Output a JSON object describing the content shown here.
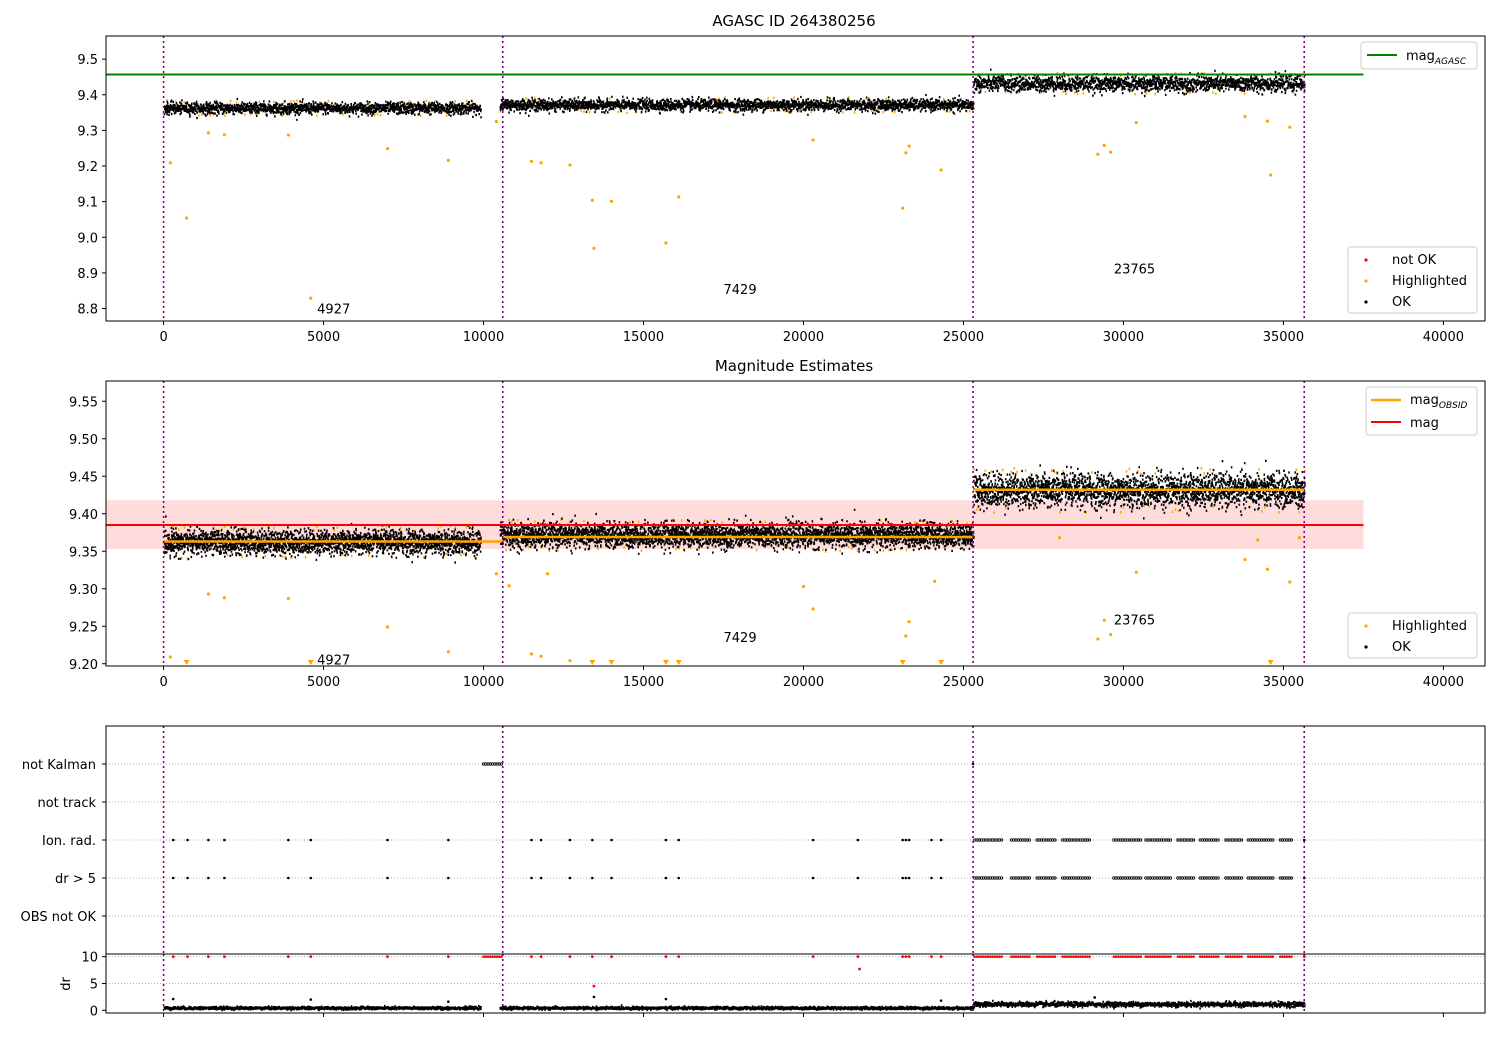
{
  "colors": {
    "ok": "#000000",
    "highlighted": "#ffa500",
    "not_ok": "#ff0000",
    "mag_agasc": "#008000",
    "mag_obsid": "#ffa500",
    "mag": "#ff0000",
    "band": "#ffdcdc",
    "obs_divider": "#800080"
  },
  "chart_data": [
    {
      "id": "agasc",
      "type": "scatter",
      "title": "AGASC ID 264380256",
      "xlim": [
        -1800,
        41300
      ],
      "ylim": [
        8.765,
        9.565
      ],
      "x_ticks": [
        0,
        5000,
        10000,
        15000,
        20000,
        25000,
        30000,
        35000,
        40000
      ],
      "y_ticks": [
        8.8,
        8.9,
        9.0,
        9.1,
        9.2,
        9.3,
        9.4,
        9.5
      ],
      "y_tick_labels": [
        "8.8",
        "8.9",
        "9.0",
        "9.1",
        "9.2",
        "9.3",
        "9.4",
        "9.5"
      ],
      "obs_boundaries": [
        0,
        10600,
        25300,
        35650
      ],
      "obsid_labels": [
        {
          "text": "4927",
          "x": 4800,
          "y": 8.8
        },
        {
          "text": "7429",
          "x": 17500,
          "y": 8.855
        },
        {
          "text": "23765",
          "x": 29700,
          "y": 8.912
        }
      ],
      "ok_bands": [
        {
          "x0": 0,
          "x1": 9900,
          "center": 9.362,
          "spread": 0.016
        },
        {
          "x0": 10500,
          "x1": 25300,
          "center": 9.371,
          "spread": 0.016
        },
        {
          "x0": 25300,
          "x1": 35650,
          "center": 9.431,
          "spread": 0.022
        }
      ],
      "hlines": [
        {
          "name": "mag_AGASC",
          "y": 9.457,
          "x0": -1800,
          "x1": 37500,
          "color": "#008000"
        }
      ],
      "highlighted_points": [
        [
          210,
          9.209
        ],
        [
          720,
          9.054
        ],
        [
          1400,
          9.293
        ],
        [
          1900,
          9.288
        ],
        [
          3900,
          9.287
        ],
        [
          4600,
          8.829
        ],
        [
          7000,
          9.249
        ],
        [
          8900,
          9.216
        ],
        [
          10400,
          9.325
        ],
        [
          11500,
          9.213
        ],
        [
          11800,
          9.209
        ],
        [
          12700,
          9.203
        ],
        [
          13400,
          9.104
        ],
        [
          13450,
          8.969
        ],
        [
          14000,
          9.101
        ],
        [
          15700,
          8.984
        ],
        [
          16100,
          9.113
        ],
        [
          20300,
          9.273
        ],
        [
          23100,
          9.082
        ],
        [
          23200,
          9.237
        ],
        [
          23300,
          9.256
        ],
        [
          24300,
          9.189
        ],
        [
          29200,
          9.233
        ],
        [
          29400,
          9.258
        ],
        [
          29600,
          9.239
        ],
        [
          30400,
          9.322
        ],
        [
          33800,
          9.339
        ],
        [
          34500,
          9.326
        ],
        [
          34600,
          9.175
        ],
        [
          35200,
          9.309
        ]
      ],
      "legend": {
        "placement": "lower-right",
        "entries": [
          {
            "label": "not OK",
            "color": "#ff0000"
          },
          {
            "label": "Highlighted",
            "color": "#ffa500"
          },
          {
            "label": "OK",
            "color": "#000000"
          }
        ]
      },
      "legend_lines": {
        "placement": "upper-right",
        "entries": [
          {
            "label": "mag",
            "subscript": "AGASC",
            "color": "#008000"
          }
        ]
      }
    },
    {
      "id": "estimates",
      "type": "scatter",
      "title": "Magnitude Estimates",
      "xlim": [
        -1800,
        41300
      ],
      "ylim": [
        9.197,
        9.577
      ],
      "x_ticks": [
        0,
        5000,
        10000,
        15000,
        20000,
        25000,
        30000,
        35000,
        40000
      ],
      "y_ticks": [
        9.2,
        9.25,
        9.3,
        9.35,
        9.4,
        9.45,
        9.5,
        9.55
      ],
      "y_tick_labels": [
        "9.20",
        "9.25",
        "9.30",
        "9.35",
        "9.40",
        "9.45",
        "9.50",
        "9.55"
      ],
      "obs_boundaries": [
        0,
        10600,
        25300,
        35650
      ],
      "obsid_labels": [
        {
          "text": "4927",
          "x": 4800,
          "y": 9.206
        },
        {
          "text": "7429",
          "x": 17500,
          "y": 9.236
        },
        {
          "text": "23765",
          "x": 29700,
          "y": 9.259
        }
      ],
      "ok_bands": [
        {
          "x0": 0,
          "x1": 9900,
          "center": 9.362,
          "spread": 0.016
        },
        {
          "x0": 10500,
          "x1": 25300,
          "center": 9.371,
          "spread": 0.016
        },
        {
          "x0": 25300,
          "x1": 35650,
          "center": 9.431,
          "spread": 0.022
        }
      ],
      "band": {
        "x0": -1800,
        "x1": 37500,
        "y0": 9.353,
        "y1": 9.418
      },
      "hlines": [
        {
          "name": "mag",
          "y": 9.385,
          "x0": -1800,
          "x1": 37500,
          "color": "#ff0000"
        }
      ],
      "obsid_segments": [
        {
          "x0": 0,
          "x1": 10600,
          "y": 9.363
        },
        {
          "x0": 10600,
          "x1": 25300,
          "y": 9.369
        },
        {
          "x0": 25300,
          "x1": 35650,
          "y": 9.432
        }
      ],
      "highlighted_points": [
        [
          1400,
          9.293
        ],
        [
          1900,
          9.288
        ],
        [
          3900,
          9.287
        ],
        [
          7000,
          9.249
        ],
        [
          8900,
          9.216
        ],
        [
          10400,
          9.32
        ],
        [
          10800,
          9.304
        ],
        [
          11500,
          9.213
        ],
        [
          11800,
          9.21
        ],
        [
          12000,
          9.32
        ],
        [
          12700,
          9.204
        ],
        [
          20000,
          9.303
        ],
        [
          20300,
          9.273
        ],
        [
          23300,
          9.256
        ],
        [
          23200,
          9.237
        ],
        [
          24100,
          9.31
        ],
        [
          29200,
          9.233
        ],
        [
          29400,
          9.258
        ],
        [
          29600,
          9.239
        ],
        [
          30400,
          9.322
        ],
        [
          33800,
          9.339
        ],
        [
          34200,
          9.365
        ],
        [
          34500,
          9.326
        ],
        [
          35200,
          9.309
        ],
        [
          35500,
          9.368
        ],
        [
          28000,
          9.368
        ],
        [
          210,
          9.209
        ]
      ],
      "clipped_points_x": [
        720,
        4600,
        13400,
        14000,
        15700,
        16100,
        23100,
        24300,
        34600
      ],
      "legend": {
        "placement": "lower-right",
        "entries": [
          {
            "label": "Highlighted",
            "color": "#ffa500"
          },
          {
            "label": "OK",
            "color": "#000000"
          }
        ]
      },
      "legend_lines": {
        "placement": "upper-right",
        "entries": [
          {
            "label": "mag",
            "subscript": "OBSID",
            "color": "#ffa500"
          },
          {
            "label": "mag",
            "subscript": "",
            "color": "#ff0000"
          }
        ]
      }
    },
    {
      "id": "flags",
      "type": "scatter",
      "title": "",
      "xlim": [
        -1800,
        41300
      ],
      "categories": [
        "not Kalman",
        "not track",
        "Ion. rad.",
        "dr > 5",
        "OBS not OK"
      ],
      "obs_boundaries": [
        0,
        10600,
        25300,
        35650
      ],
      "flag_points": {
        "not Kalman": {
          "segments": [
            [
              10000,
              10600
            ]
          ],
          "points": [
            25300
          ]
        },
        "not track": {
          "segments": [],
          "points": []
        },
        "Ion. rad.": {
          "points": [
            300,
            750,
            1400,
            1900,
            3900,
            4600,
            7000,
            8900,
            11500,
            11800,
            12700,
            13400,
            14000,
            15700,
            16100,
            20300,
            21700,
            23100,
            23200,
            23300,
            24000,
            24300,
            35650
          ],
          "segments": [
            [
              25350,
              26200
            ],
            [
              26500,
              27100
            ],
            [
              27300,
              27900
            ],
            [
              28100,
              29000
            ],
            [
              29700,
              30600
            ],
            [
              30700,
              31500
            ],
            [
              31700,
              32200
            ],
            [
              32400,
              33000
            ],
            [
              33200,
              33700
            ],
            [
              33900,
              34700
            ],
            [
              34900,
              35300
            ]
          ]
        },
        "dr > 5": {
          "points": [
            300,
            750,
            1400,
            1900,
            3900,
            4600,
            7000,
            8900,
            11500,
            11800,
            12700,
            13400,
            14000,
            15700,
            16100,
            20300,
            21700,
            23100,
            23200,
            23300,
            24000,
            24300,
            35650
          ],
          "segments": [
            [
              25350,
              26200
            ],
            [
              26500,
              27100
            ],
            [
              27300,
              27900
            ],
            [
              28100,
              29000
            ],
            [
              29700,
              30600
            ],
            [
              30700,
              31500
            ],
            [
              31700,
              32200
            ],
            [
              32400,
              33000
            ],
            [
              33200,
              33700
            ],
            [
              33900,
              34700
            ],
            [
              34900,
              35300
            ]
          ]
        },
        "OBS not OK": {
          "segments": [],
          "points": []
        }
      }
    },
    {
      "id": "dr",
      "type": "scatter",
      "title": "",
      "ylabel": "dr",
      "xlim": [
        -1800,
        41300
      ],
      "ylim": [
        -0.5,
        10.5
      ],
      "x_ticks": [
        0,
        5000,
        10000,
        15000,
        20000,
        25000,
        30000,
        35000,
        40000
      ],
      "y_ticks": [
        0,
        5,
        10
      ],
      "y_tick_labels": [
        "0",
        "5",
        "10"
      ],
      "obs_boundaries": [
        0,
        10600,
        25300,
        35650
      ],
      "ok_bands": [
        {
          "x0": 0,
          "x1": 9900,
          "center": 0.4,
          "spread": 0.25
        },
        {
          "x0": 10500,
          "x1": 25300,
          "center": 0.4,
          "spread": 0.25
        },
        {
          "x0": 25300,
          "x1": 35650,
          "center": 1.1,
          "spread": 0.45
        }
      ],
      "not_ok_points": [
        [
          300,
          10
        ],
        [
          750,
          10
        ],
        [
          1400,
          10
        ],
        [
          1900,
          10
        ],
        [
          3900,
          10
        ],
        [
          4600,
          10
        ],
        [
          7000,
          10
        ],
        [
          8900,
          10
        ],
        [
          11500,
          10
        ],
        [
          11800,
          10
        ],
        [
          12700,
          10
        ],
        [
          13400,
          10
        ],
        [
          14000,
          10
        ],
        [
          15700,
          10
        ],
        [
          16100,
          10
        ],
        [
          20300,
          10
        ],
        [
          21700,
          10
        ],
        [
          21750,
          7.7
        ],
        [
          23100,
          10
        ],
        [
          23200,
          10
        ],
        [
          23300,
          10
        ],
        [
          24000,
          10
        ],
        [
          24300,
          10
        ],
        [
          13450,
          4.5
        ],
        [
          35650,
          10
        ]
      ],
      "not_ok_segments": [
        [
          10000,
          10600
        ],
        [
          25350,
          26200
        ],
        [
          26500,
          27100
        ],
        [
          27300,
          27900
        ],
        [
          28100,
          29000
        ],
        [
          29700,
          30600
        ],
        [
          30700,
          31500
        ],
        [
          31700,
          32200
        ],
        [
          32400,
          33000
        ],
        [
          33200,
          33700
        ],
        [
          33900,
          34700
        ],
        [
          34900,
          35300
        ]
      ],
      "ok_points": [
        [
          300,
          2.1
        ],
        [
          4600,
          2.0
        ],
        [
          8900,
          1.6
        ],
        [
          13450,
          2.5
        ],
        [
          15700,
          2.1
        ],
        [
          24300,
          1.8
        ],
        [
          29100,
          2.4
        ]
      ]
    }
  ]
}
